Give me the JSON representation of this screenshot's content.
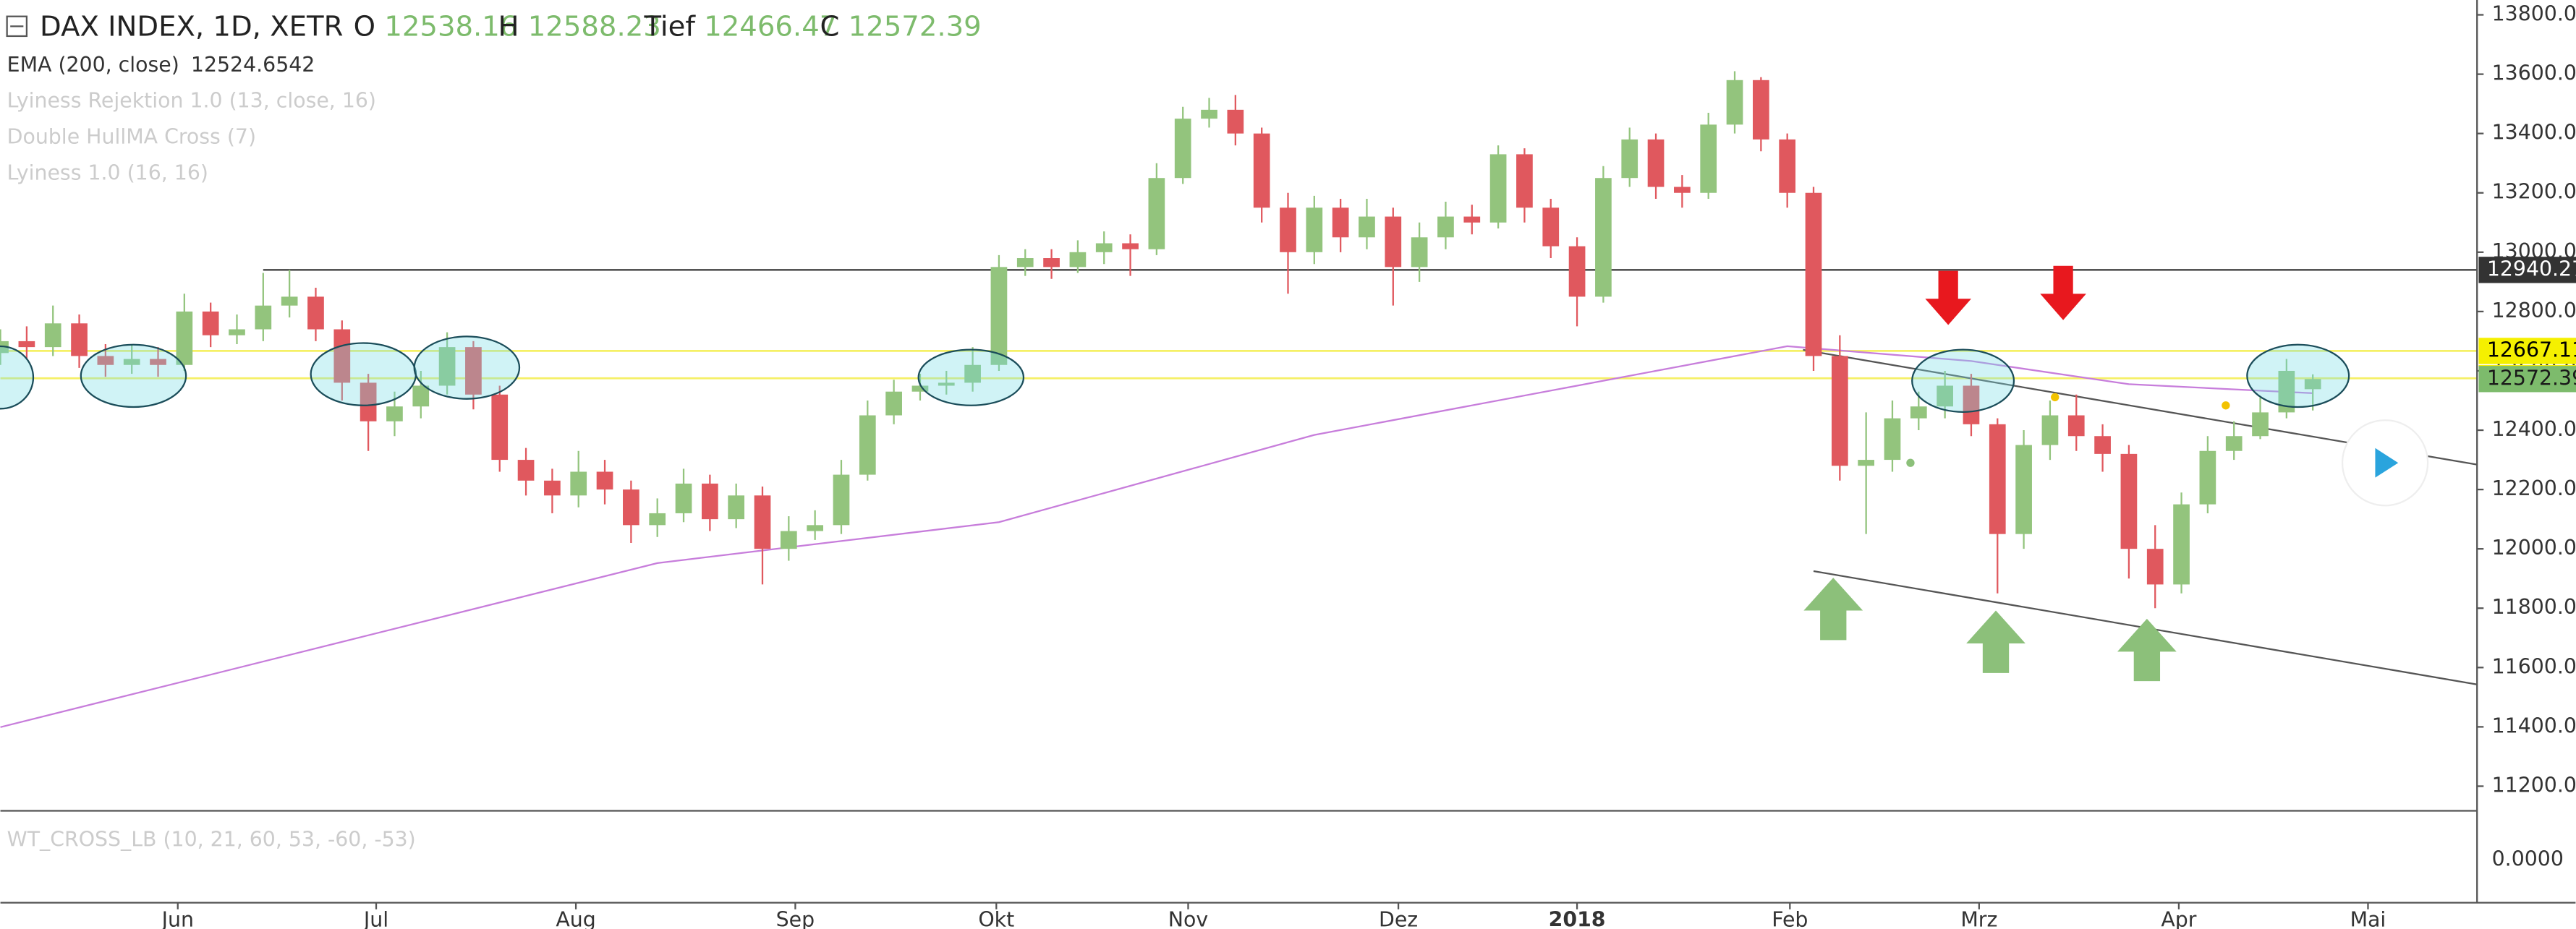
{
  "chart_data": {
    "type": "candlestick",
    "title": "DAX INDEX, 1D, XETR",
    "ohlc_labels": [
      "O",
      "H",
      "Tief",
      "C"
    ],
    "indicators": [
      "EMA (200, close)",
      "Lyiness Rejektion 1.0 (13, close, 16)",
      "Double HullMA Cross (7)",
      "Lyiness 1.0 (16, 16)"
    ],
    "lower_pane": {
      "title": "WT_CROSS_LB (10, 21, 60, 53, -60, -53)",
      "yticks": [
        {
          "value": 0,
          "label": "0.0000"
        }
      ]
    },
    "up_color": "#93c47d",
    "down_color": "#e0585e",
    "open": [
      12660,
      12700,
      12680,
      12760,
      12650,
      12620,
      12640,
      12620,
      12800,
      12720,
      12740,
      12820,
      12850,
      12740,
      12560,
      12430,
      12480,
      12550,
      12680,
      12520,
      12300,
      12230,
      12180,
      12260,
      12200,
      12080,
      12120,
      12220,
      12100,
      12180,
      12000,
      12060,
      12080,
      12250,
      12450,
      12530,
      12550,
      12560,
      12620,
      12950,
      12980,
      12950,
      13000,
      13030,
      13010,
      13250,
      13450,
      13480,
      13400,
      13150,
      13000,
      13150,
      13050,
      13120,
      12950,
      13050,
      13120,
      13100,
      13330,
      13150,
      13020,
      12850,
      13250,
      13380,
      13220,
      13200,
      13430,
      13580,
      13380,
      13200,
      12650,
      12280,
      12300,
      12440,
      12480,
      12550,
      12420,
      12050,
      12350,
      12450,
      12380,
      12320,
      12000,
      11880,
      12150,
      12330,
      12380,
      12460,
      12538.16
    ],
    "high": [
      12740,
      12750,
      12820,
      12790,
      12690,
      12690,
      12680,
      12860,
      12830,
      12790,
      12930,
      12940,
      12880,
      12770,
      12590,
      12530,
      12600,
      12730,
      12700,
      12550,
      12340,
      12270,
      12330,
      12300,
      12230,
      12170,
      12270,
      12250,
      12220,
      12210,
      12110,
      12130,
      12300,
      12500,
      12570,
      12590,
      12600,
      12680,
      12990,
      13010,
      13010,
      13040,
      13070,
      13060,
      13300,
      13490,
      13520,
      13530,
      13420,
      13200,
      13190,
      13180,
      13180,
      13150,
      13100,
      13170,
      13160,
      13360,
      13350,
      13180,
      13050,
      13290,
      13420,
      13400,
      13260,
      13470,
      13610,
      13590,
      13400,
      13220,
      12720,
      12460,
      12500,
      12530,
      12600,
      12590,
      12440,
      12400,
      12500,
      12520,
      12420,
      12350,
      12080,
      12190,
      12380,
      12430,
      12510,
      12640,
      12588.23
    ],
    "low": [
      12620,
      12640,
      12650,
      12610,
      12580,
      12590,
      12580,
      12600,
      12680,
      12690,
      12700,
      12780,
      12700,
      12500,
      12330,
      12380,
      12440,
      12520,
      12470,
      12260,
      12180,
      12120,
      12140,
      12150,
      12020,
      12040,
      12090,
      12060,
      12070,
      11880,
      11960,
      12030,
      12050,
      12230,
      12420,
      12500,
      12520,
      12530,
      12600,
      12920,
      12910,
      12930,
      12960,
      12920,
      12990,
      13230,
      13420,
      13360,
      13100,
      12860,
      12960,
      13000,
      13010,
      12820,
      12900,
      13010,
      13060,
      13080,
      13100,
      12980,
      12750,
      12830,
      13220,
      13180,
      13150,
      13180,
      13400,
      13340,
      13150,
      12600,
      12230,
      12050,
      12260,
      12400,
      12440,
      12380,
      11850,
      12000,
      12300,
      12330,
      12260,
      11900,
      11800,
      11850,
      12120,
      12300,
      12370,
      12440,
      12466.47
    ],
    "close": [
      12700,
      12680,
      12760,
      12650,
      12620,
      12640,
      12620,
      12800,
      12720,
      12740,
      12820,
      12850,
      12740,
      12560,
      12430,
      12480,
      12550,
      12680,
      12520,
      12300,
      12230,
      12180,
      12260,
      12200,
      12080,
      12120,
      12220,
      12100,
      12180,
      12000,
      12060,
      12080,
      12250,
      12450,
      12530,
      12550,
      12560,
      12620,
      12950,
      12980,
      12950,
      13000,
      13030,
      13010,
      13250,
      13450,
      13480,
      13400,
      13150,
      13000,
      13150,
      13050,
      13120,
      12950,
      13050,
      13120,
      13100,
      13330,
      13150,
      13020,
      12850,
      13250,
      13380,
      13220,
      13200,
      13430,
      13580,
      13380,
      13200,
      12650,
      12280,
      12300,
      12440,
      12480,
      12550,
      12420,
      12050,
      12350,
      12450,
      12380,
      12320,
      12000,
      11880,
      12150,
      12330,
      12380,
      12460,
      12600,
      12572.39
    ],
    "ema": {
      "color": "#c77ddb",
      "x": [
        0,
        25,
        38,
        50,
        60,
        68,
        75,
        81,
        88
      ],
      "values": [
        11399,
        11952,
        12090,
        12384,
        12550,
        12683,
        12633,
        12555,
        12524.6542
      ]
    },
    "levels": [
      {
        "value": 12940.27,
        "color": "#555555",
        "start": 10
      },
      {
        "value": 12667.11,
        "color": "#f5f066",
        "start": 0
      },
      {
        "value": 12575.03,
        "color": "#f5f066",
        "start": 0
      }
    ],
    "trendlines": [
      {
        "x": [
          68.6,
          94.25
        ],
        "values": [
          12671,
          12284
        ]
      },
      {
        "x": [
          69,
          94.25
        ],
        "values": [
          11925,
          11543
        ]
      }
    ],
    "xlim": [
      0,
      94.25
    ],
    "ylim": [
      11117,
      13850
    ],
    "xticks": [
      {
        "value": 6.75,
        "label": "Jun"
      },
      {
        "value": 14.3,
        "label": "Jul"
      },
      {
        "value": 21.9,
        "label": "Aug"
      },
      {
        "value": 30.25,
        "label": "Sep"
      },
      {
        "value": 37.9,
        "label": "Okt"
      },
      {
        "value": 45.2,
        "label": "Nov"
      },
      {
        "value": 53.2,
        "label": "Dez"
      },
      {
        "value": 60,
        "label": "2018"
      },
      {
        "value": 68.1,
        "label": "Feb"
      },
      {
        "value": 75.3,
        "label": "Mrz"
      },
      {
        "value": 82.9,
        "label": "Apr"
      },
      {
        "value": 90.1,
        "label": "Mai"
      }
    ],
    "yticks": [
      {
        "value": 13800,
        "label": "13800.00"
      },
      {
        "value": 13600,
        "label": "13600.00"
      },
      {
        "value": 13400,
        "label": "13400.00"
      },
      {
        "value": 13200,
        "label": "13200.00"
      },
      {
        "value": 13000,
        "label": "13000.00"
      },
      {
        "value": 12800,
        "label": "12800.00"
      },
      {
        "value": 12600,
        "label": "12600.00"
      },
      {
        "value": 12400,
        "label": "12400.00"
      },
      {
        "value": 12200,
        "label": "12200.00"
      },
      {
        "value": 12000,
        "label": "12000.00"
      },
      {
        "value": 11800,
        "label": "11800.00"
      },
      {
        "value": 11600,
        "label": "11600.00"
      },
      {
        "value": 11400,
        "label": "11400.00"
      },
      {
        "value": 11200,
        "label": "11200.00"
      }
    ]
  }
}
